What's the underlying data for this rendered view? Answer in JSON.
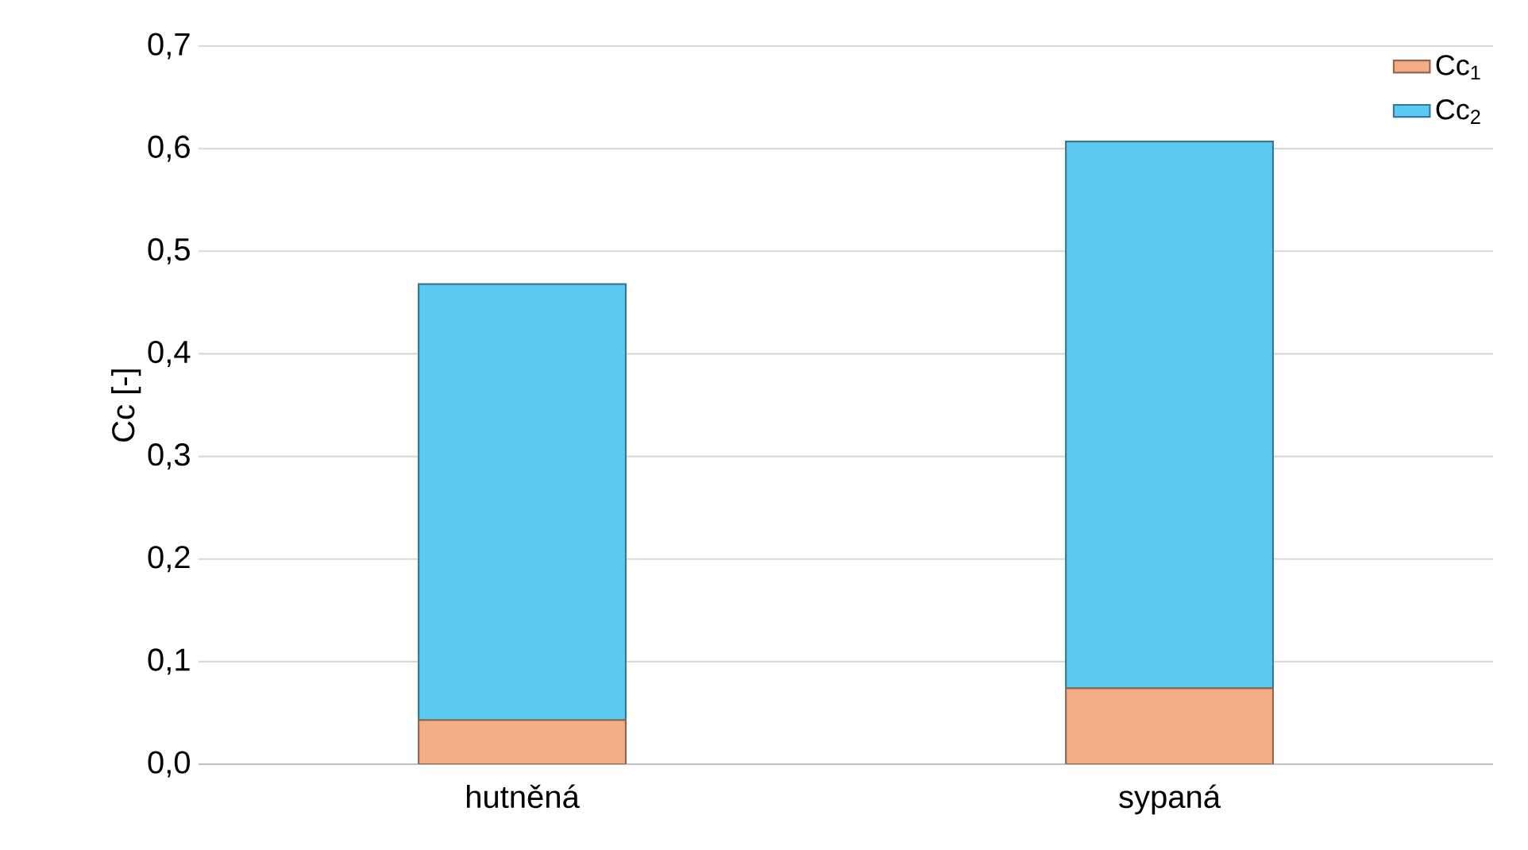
{
  "chart_data": {
    "type": "bar",
    "stacked": true,
    "ylabel": "Cc [-]",
    "categories": [
      "hutněná",
      "sypaná"
    ],
    "series": [
      {
        "name": "Cc$_{1}$",
        "color": "#f4ad85",
        "values": [
          0.043,
          0.074
        ]
      },
      {
        "name": "Cc$_{2}$",
        "color": "#5ccbf3",
        "values": [
          0.425,
          0.533
        ]
      }
    ],
    "ylim": [
      0,
      0.7
    ],
    "yticks": [
      {
        "value": 0,
        "label": "0,0"
      },
      {
        "value": 0.1,
        "label": "0,1"
      },
      {
        "value": 0.2,
        "label": "0,2"
      },
      {
        "value": 0.3,
        "label": "0,3"
      },
      {
        "value": 0.4,
        "label": "0,4"
      },
      {
        "value": 0.5,
        "label": "0,5"
      },
      {
        "value": 0.6,
        "label": "0,6"
      },
      {
        "value": 0.7,
        "label": "0,7"
      }
    ],
    "grid": "y",
    "legend": "top right"
  }
}
